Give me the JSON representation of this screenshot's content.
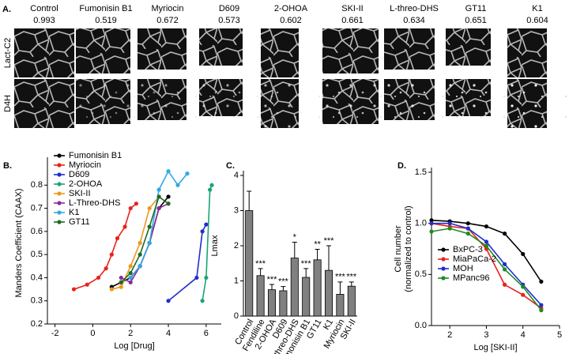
{
  "panel_a": {
    "label": "A.",
    "row_labels": [
      "Lact-C2",
      "D4H"
    ],
    "columns": [
      {
        "name": "Control",
        "value": 0.993
      },
      {
        "name": "Fumonisin B1",
        "value": 0.519
      },
      {
        "name": "Myriocin",
        "value": 0.672
      },
      {
        "name": "D609",
        "value": 0.573
      },
      {
        "name": "2-OHOA",
        "value": 0.602
      },
      {
        "name": "SKI-II",
        "value": 0.661
      },
      {
        "name": "L-threo-DHS",
        "value": 0.634
      },
      {
        "name": "GT11",
        "value": 0.651
      },
      {
        "name": "K1",
        "value": 0.604
      }
    ]
  },
  "chart_data": [
    {
      "type": "line",
      "panel_label": "B.",
      "x_label": "Log [Drug]",
      "y_label": "Manders Coefficient (CAAX)",
      "xlim": [
        -2.4,
        6.8
      ],
      "xticks": [
        -2,
        0,
        2,
        4,
        6
      ],
      "ylim": [
        0.2,
        0.9
      ],
      "yticks": [
        0.2,
        0.3,
        0.4,
        0.5,
        0.6,
        0.7,
        0.8
      ],
      "legend": "top-left",
      "series": [
        {
          "name": "Fumonisin B1",
          "color": "#000000",
          "x": [
            1,
            1.5,
            2,
            2.5,
            3,
            3.5,
            4
          ],
          "values": [
            0.36,
            0.38,
            0.4,
            0.45,
            0.55,
            0.7,
            0.75
          ]
        },
        {
          "name": "Myriocin",
          "color": "#e8231c",
          "x": [
            -1,
            -0.3,
            0.3,
            0.7,
            1,
            1.3,
            1.7,
            2,
            2.3
          ],
          "values": [
            0.35,
            0.37,
            0.4,
            0.44,
            0.5,
            0.57,
            0.62,
            0.7,
            0.72
          ]
        },
        {
          "name": "D609",
          "color": "#1e2ecc",
          "x": [
            4,
            5.5,
            5.8,
            6
          ],
          "values": [
            0.3,
            0.4,
            0.6,
            0.63
          ]
        },
        {
          "name": "2-OHOA",
          "color": "#1aa37a",
          "x": [
            5.8,
            6,
            6.2,
            6.3
          ],
          "values": [
            0.3,
            0.4,
            0.78,
            0.8
          ]
        },
        {
          "name": "SKI-II",
          "color": "#f0961c",
          "x": [
            1,
            1.5,
            2,
            2.5,
            3,
            3.5
          ],
          "values": [
            0.35,
            0.36,
            0.45,
            0.55,
            0.7,
            0.75
          ]
        },
        {
          "name": "L-Threo-DHS",
          "color": "#8a2a9a",
          "x": [
            1.5,
            2,
            2.5,
            3,
            3.5,
            4
          ],
          "values": [
            0.4,
            0.38,
            0.45,
            0.55,
            0.7,
            0.72
          ]
        },
        {
          "name": "K1",
          "color": "#30a8e6",
          "x": [
            2,
            2.5,
            3,
            3.5,
            4,
            4.5,
            5
          ],
          "values": [
            0.4,
            0.45,
            0.55,
            0.78,
            0.86,
            0.8,
            0.85
          ]
        },
        {
          "name": "GT11",
          "color": "#1f6b1f",
          "x": [
            1.5,
            2,
            2.5,
            3,
            3.5,
            4
          ],
          "values": [
            0.38,
            0.42,
            0.5,
            0.62,
            0.75,
            0.72
          ]
        }
      ]
    },
    {
      "type": "bar",
      "panel_label": "C.",
      "y_label": "Lmax",
      "color": "#808080",
      "ylim": [
        0,
        4
      ],
      "yticks": [
        0,
        1,
        2,
        3,
        4
      ],
      "categories": [
        "Control",
        "Fendiline",
        "2-OHOA",
        "D609",
        "L-threo-DHS",
        "Fumonisin B1",
        "GT11",
        "K1",
        "Myriocin",
        "SKI-II"
      ],
      "values": [
        3.0,
        1.15,
        0.75,
        0.72,
        1.65,
        1.1,
        1.6,
        1.3,
        0.62,
        0.85
      ],
      "errors": [
        0.55,
        0.2,
        0.15,
        0.12,
        0.45,
        0.25,
        0.3,
        0.7,
        0.35,
        0.12
      ],
      "annotations": [
        null,
        "***",
        "***",
        "***",
        "*",
        "***",
        "**",
        "***",
        "***",
        "***"
      ]
    },
    {
      "type": "line",
      "panel_label": "D.",
      "x_label": "Log [SKI-II]",
      "y_label": [
        "Cell number",
        "(normalized to control)"
      ],
      "xlim": [
        1.5,
        5
      ],
      "xticks": [
        2,
        3,
        4,
        5
      ],
      "ylim": [
        0,
        1.5
      ],
      "yticks": [
        {
          "value": 0,
          "label": "0.0"
        },
        0.5,
        {
          "value": 1,
          "label": "1.0"
        },
        1.5
      ],
      "legend": "bottom-left",
      "x": [
        1.5,
        2,
        2.5,
        3,
        3.5,
        4,
        4.5
      ],
      "series": [
        {
          "name": "BxPC-3",
          "color": "#000000",
          "values": [
            1.03,
            1.02,
            1.0,
            0.97,
            0.9,
            0.7,
            0.43
          ]
        },
        {
          "name": "MiaPaCa-2",
          "color": "#e8231c",
          "values": [
            1.0,
            0.97,
            0.95,
            0.75,
            0.4,
            0.3,
            0.17
          ]
        },
        {
          "name": "MOH",
          "color": "#1e2ecc",
          "values": [
            1.0,
            1.0,
            0.95,
            0.82,
            0.6,
            0.4,
            0.2
          ]
        },
        {
          "name": "MPanc96",
          "color": "#1f8a1f",
          "values": [
            0.92,
            0.95,
            0.9,
            0.78,
            0.55,
            0.38,
            0.15
          ]
        }
      ]
    }
  ]
}
